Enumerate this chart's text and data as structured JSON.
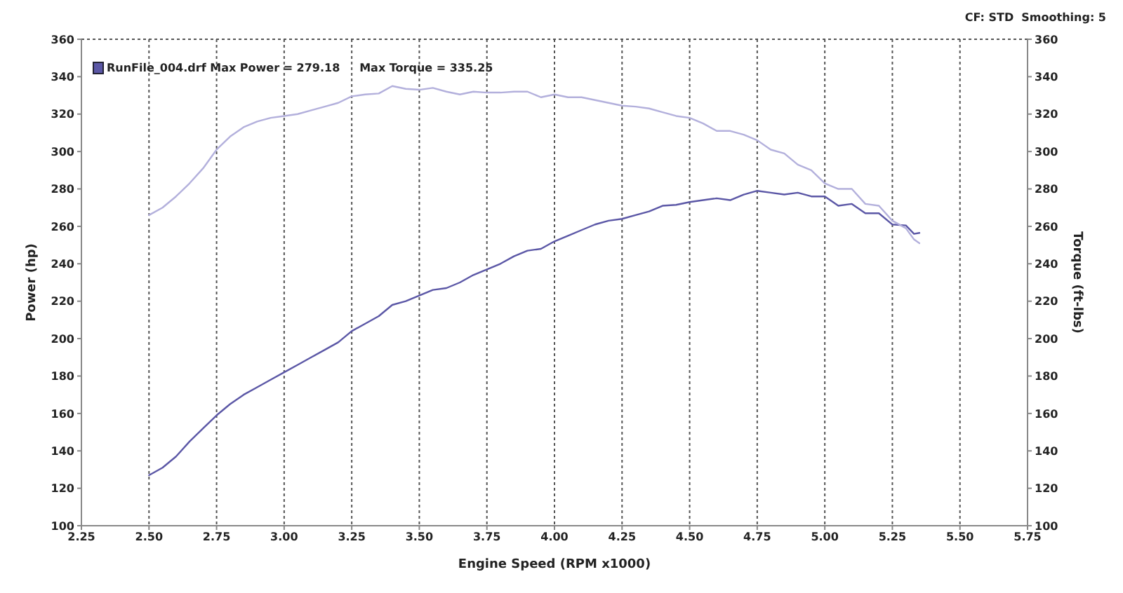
{
  "chart_data": {
    "type": "line",
    "xlabel": "Engine Speed (RPM x1000)",
    "ylabel": "Power (hp)",
    "y2label": "Torque (ft-lbs)",
    "annotations": [
      "RunFile_004.drf Max Power = 279.18     Max Torque = 335.25",
      "CF: STD  Smoothing: 5"
    ],
    "x": [
      2.5,
      2.55,
      2.6,
      2.65,
      2.7,
      2.75,
      2.8,
      2.85,
      2.9,
      2.95,
      3.0,
      3.05,
      3.1,
      3.15,
      3.2,
      3.25,
      3.3,
      3.35,
      3.4,
      3.45,
      3.5,
      3.55,
      3.6,
      3.65,
      3.7,
      3.75,
      3.8,
      3.85,
      3.9,
      3.95,
      4.0,
      4.05,
      4.1,
      4.15,
      4.2,
      4.25,
      4.3,
      4.35,
      4.4,
      4.45,
      4.5,
      4.55,
      4.6,
      4.65,
      4.7,
      4.75,
      4.8,
      4.85,
      4.9,
      4.95,
      5.0,
      5.05,
      5.1,
      5.15,
      5.2,
      5.25,
      5.3,
      5.33,
      5.35
    ],
    "series": [
      {
        "color": "#5b57a6",
        "values": [
          127,
          131,
          137,
          145,
          152,
          159,
          165,
          170,
          174,
          178,
          182,
          186,
          190,
          194,
          198,
          204,
          208,
          212,
          218,
          220,
          223,
          226,
          227,
          230,
          234,
          237,
          240,
          244,
          247,
          248,
          252,
          255,
          258,
          261,
          263,
          264,
          266,
          268,
          271,
          271.5,
          273,
          274,
          275,
          274,
          277,
          279,
          278,
          277,
          278,
          276,
          276,
          271,
          272,
          267,
          267,
          261,
          260.5,
          256,
          256.5
        ]
      },
      {
        "color": "#b3b0dc",
        "axis": "y2",
        "values": [
          266,
          270,
          276,
          283,
          291,
          301,
          308,
          313,
          316,
          318,
          319,
          320,
          322,
          324,
          326,
          329.5,
          330.5,
          331,
          335,
          333.5,
          333,
          334,
          332,
          330.5,
          332,
          331.5,
          331.5,
          332,
          332,
          329,
          330.5,
          329,
          329,
          327.5,
          326,
          324.5,
          324,
          323,
          321,
          319,
          318,
          315,
          311,
          311,
          309,
          306,
          301,
          299,
          293,
          290,
          283,
          280,
          280,
          272,
          271,
          263,
          259,
          253,
          251
        ]
      }
    ],
    "xlim": [
      2.25,
      5.75
    ],
    "xticks": [
      {
        "value": 2.25,
        "label": "2.25"
      },
      {
        "value": 2.5,
        "label": "2.50"
      },
      {
        "value": 2.75,
        "label": "2.75"
      },
      {
        "value": 3,
        "label": "3.00"
      },
      {
        "value": 3.25,
        "label": "3.25"
      },
      {
        "value": 3.5,
        "label": "3.50"
      },
      {
        "value": 3.75,
        "label": "3.75"
      },
      {
        "value": 4,
        "label": "4.00"
      },
      {
        "value": 4.25,
        "label": "4.25"
      },
      {
        "value": 4.5,
        "label": "4.50"
      },
      {
        "value": 4.75,
        "label": "4.75"
      },
      {
        "value": 5,
        "label": "5.00"
      },
      {
        "value": 5.25,
        "label": "5.25"
      },
      {
        "value": 5.5,
        "label": "5.50"
      },
      {
        "value": 5.75,
        "label": "5.75"
      }
    ],
    "ylim": [
      100,
      360
    ],
    "yticks": [
      100,
      120,
      140,
      160,
      180,
      200,
      220,
      240,
      260,
      280,
      300,
      320,
      340,
      360
    ],
    "y2lim": [
      100,
      360
    ],
    "y2ticks": [
      100,
      120,
      140,
      160,
      180,
      200,
      220,
      240,
      260,
      280,
      300,
      320,
      340,
      360
    ],
    "grid": true,
    "marker": "none",
    "line_style": "solid",
    "legend": false
  }
}
